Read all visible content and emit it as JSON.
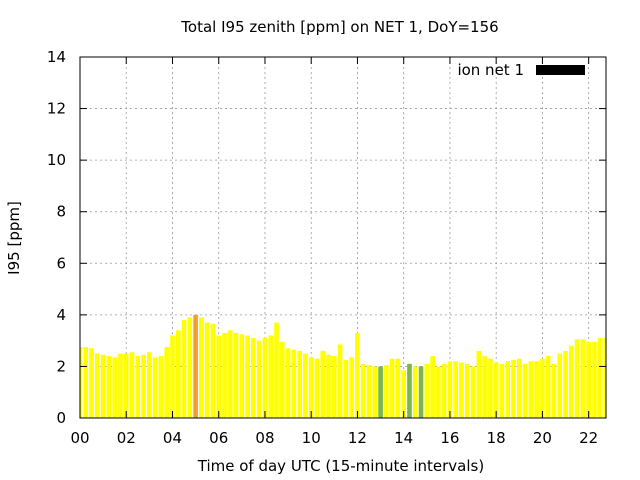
{
  "chart_data": {
    "type": "bar",
    "title": "Total I95 zenith [ppm] on NET 1, DoY=156",
    "xlabel": "Time of day UTC (15-minute intervals)",
    "ylabel": "I95 [ppm]",
    "xlim": [
      0,
      22.75
    ],
    "ylim": [
      0,
      14
    ],
    "x_ticks": [
      "00",
      "02",
      "04",
      "06",
      "08",
      "10",
      "12",
      "14",
      "16",
      "18",
      "20",
      "22"
    ],
    "y_ticks": [
      "0",
      "2",
      "4",
      "6",
      "8",
      "10",
      "12",
      "14"
    ],
    "grid": true,
    "legend_position": "top-right",
    "series": [
      {
        "name": "ion net 1",
        "legend_color": "#000000",
        "bar_width_hours": 0.2,
        "x": [
          0.0,
          0.25,
          0.5,
          0.75,
          1.0,
          1.25,
          1.5,
          1.75,
          2.0,
          2.25,
          2.5,
          2.75,
          3.0,
          3.25,
          3.5,
          3.75,
          4.0,
          4.25,
          4.5,
          4.75,
          5.0,
          5.25,
          5.5,
          5.75,
          6.0,
          6.25,
          6.5,
          6.75,
          7.0,
          7.25,
          7.5,
          7.75,
          8.0,
          8.25,
          8.5,
          8.75,
          9.0,
          9.25,
          9.5,
          9.75,
          10.0,
          10.25,
          10.5,
          10.75,
          11.0,
          11.25,
          11.5,
          11.75,
          12.0,
          12.25,
          12.5,
          12.75,
          13.0,
          13.25,
          13.5,
          13.75,
          14.0,
          14.25,
          14.5,
          14.75,
          15.0,
          15.25,
          15.5,
          15.75,
          16.0,
          16.25,
          16.5,
          16.75,
          17.0,
          17.25,
          17.5,
          17.75,
          18.0,
          18.25,
          18.5,
          18.75,
          19.0,
          19.25,
          19.5,
          19.75,
          20.0,
          20.25,
          20.5,
          20.75,
          21.0,
          21.25,
          21.5,
          21.75,
          22.0,
          22.25,
          22.5,
          22.75
        ],
        "values": [
          2.75,
          2.75,
          2.7,
          2.5,
          2.45,
          2.4,
          2.35,
          2.5,
          2.5,
          2.55,
          2.4,
          2.45,
          2.55,
          2.35,
          2.4,
          2.75,
          3.2,
          3.4,
          3.8,
          3.9,
          4.0,
          3.9,
          3.7,
          3.65,
          3.2,
          3.3,
          3.4,
          3.3,
          3.25,
          3.2,
          3.1,
          3.0,
          3.1,
          3.2,
          3.7,
          2.95,
          2.7,
          2.65,
          2.6,
          2.5,
          2.35,
          2.3,
          2.6,
          2.45,
          2.4,
          2.85,
          2.25,
          2.35,
          3.3,
          2.1,
          2.05,
          2.0,
          2.0,
          2.05,
          2.3,
          2.3,
          1.85,
          2.1,
          2.0,
          2.0,
          2.1,
          2.4,
          2.0,
          2.1,
          2.2,
          2.2,
          2.15,
          2.1,
          2.0,
          2.6,
          2.4,
          2.3,
          2.15,
          2.1,
          2.2,
          2.25,
          2.3,
          2.1,
          2.2,
          2.2,
          2.3,
          2.4,
          2.1,
          2.5,
          2.6,
          2.8,
          3.05,
          3.05,
          2.95,
          2.95,
          3.1,
          3.1
        ],
        "colors": [
          "#ffff00",
          "#ffff00",
          "#ffff00",
          "#ffff00",
          "#ffff00",
          "#ffff00",
          "#ffff00",
          "#ffff00",
          "#ffff00",
          "#ffff00",
          "#ffff00",
          "#ffff00",
          "#ffff00",
          "#ffff00",
          "#ffff00",
          "#ffff00",
          "#ffff00",
          "#ffff00",
          "#ffff00",
          "#ffff00",
          "#f0a030",
          "#ffff00",
          "#ffff00",
          "#ffff00",
          "#ffff00",
          "#ffff00",
          "#ffff00",
          "#ffff00",
          "#ffff00",
          "#ffff00",
          "#ffff00",
          "#ffff00",
          "#ffff00",
          "#ffff00",
          "#ffff00",
          "#ffff00",
          "#ffff00",
          "#ffff00",
          "#ffff00",
          "#ffff00",
          "#ffff00",
          "#ffff00",
          "#ffff00",
          "#ffff00",
          "#ffff00",
          "#ffff00",
          "#ffff00",
          "#ffff00",
          "#ffff00",
          "#ffff00",
          "#ffff00",
          "#ffff00",
          "#7ab648",
          "#ffff00",
          "#ffff00",
          "#ffff00",
          "#ffff00",
          "#7ab648",
          "#ffff00",
          "#7ab648",
          "#ffff00",
          "#ffff00",
          "#ffff00",
          "#ffff00",
          "#ffff00",
          "#ffff00",
          "#ffff00",
          "#ffff00",
          "#ffff00",
          "#ffff00",
          "#ffff00",
          "#ffff00",
          "#ffff00",
          "#ffff00",
          "#ffff00",
          "#ffff00",
          "#ffff00",
          "#ffff00",
          "#ffff00",
          "#ffff00",
          "#ffff00",
          "#ffff00",
          "#ffff00",
          "#ffff00",
          "#ffff00",
          "#ffff00",
          "#ffff00",
          "#ffff00",
          "#ffff00",
          "#ffff00",
          "#ffff00",
          "#ffff00"
        ]
      }
    ]
  }
}
